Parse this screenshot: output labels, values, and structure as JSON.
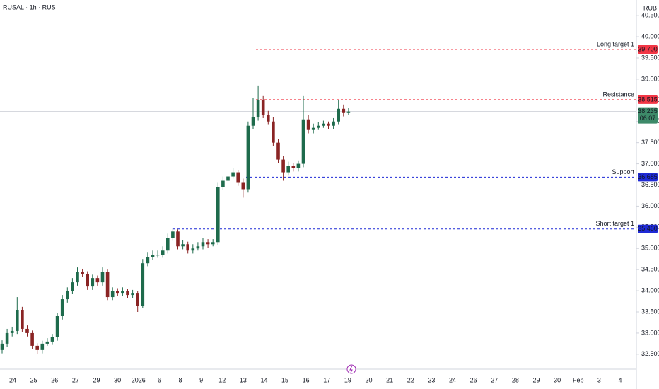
{
  "chart_data": {
    "type": "candlestick",
    "title": "RUSAL · 1h · RUS",
    "currency": "RUB",
    "up_color": "#1e6b4c",
    "down_color": "#8a2424",
    "ylim": [
      32.18,
      40.87
    ],
    "yticks": [
      {
        "value": 32.5,
        "label": "32.500"
      },
      {
        "value": 33,
        "label": "33.000"
      },
      {
        "value": 33.5,
        "label": "33.500"
      },
      {
        "value": 34,
        "label": "34.000"
      },
      {
        "value": 34.5,
        "label": "34.500"
      },
      {
        "value": 35,
        "label": "35.000"
      },
      {
        "value": 35.5,
        "label": "35.500"
      },
      {
        "value": 36,
        "label": "36.000"
      },
      {
        "value": 36.5,
        "label": "36.500"
      },
      {
        "value": 37,
        "label": "37.000"
      },
      {
        "value": 37.5,
        "label": "37.500"
      },
      {
        "value": 38,
        "label": "38.000"
      },
      {
        "value": 38.5,
        "label": "38.500"
      },
      {
        "value": 39,
        "label": "39.000"
      },
      {
        "value": 39.5,
        "label": "39.500"
      },
      {
        "value": 40,
        "label": "40.000"
      },
      {
        "value": 40.5,
        "label": "40.500"
      }
    ],
    "x_labels": [
      "24",
      "25",
      "26",
      "27",
      "29",
      "30",
      "2026",
      "6",
      "8",
      "9",
      "12",
      "13",
      "14",
      "15",
      "16",
      "17",
      "19",
      "20",
      "21",
      "22",
      "23",
      "24",
      "26",
      "27",
      "28",
      "29",
      "30",
      "Feb",
      "3",
      "4"
    ],
    "open": [
      32.6,
      32.75,
      33.0,
      33.05,
      33.55,
      33.1,
      33.0,
      32.7,
      32.6,
      32.75,
      32.8,
      32.9,
      33.4,
      33.8,
      34.0,
      34.2,
      34.45,
      34.4,
      34.1,
      34.3,
      34.2,
      34.45,
      33.85,
      34.0,
      33.95,
      34.0,
      33.9,
      33.95,
      33.65,
      34.65,
      34.8,
      34.85,
      34.85,
      34.95,
      35.25,
      35.4,
      35.05,
      35.1,
      34.95,
      35.0,
      35.05,
      35.15,
      35.1,
      35.15,
      36.45,
      36.6,
      36.7,
      36.8,
      36.55,
      36.4,
      37.9,
      38.1,
      38.5,
      38.15,
      38.0,
      37.5,
      37.1,
      36.8,
      36.95,
      36.9,
      37.0,
      38.05,
      37.8,
      37.85,
      37.9,
      37.95,
      37.9,
      38.0,
      38.3,
      38.2
    ],
    "high": [
      32.83,
      33.1,
      33.15,
      33.85,
      33.62,
      33.18,
      33.06,
      32.76,
      32.82,
      32.88,
      32.98,
      33.48,
      33.9,
      34.08,
      34.3,
      34.55,
      34.52,
      34.46,
      34.38,
      34.36,
      34.55,
      34.5,
      34.08,
      34.06,
      34.08,
      34.05,
      34.02,
      34.0,
      34.75,
      34.9,
      34.95,
      34.95,
      35.05,
      35.35,
      35.48,
      35.45,
      35.2,
      35.16,
      35.1,
      35.15,
      35.25,
      35.22,
      35.22,
      36.55,
      36.7,
      36.8,
      36.9,
      36.85,
      36.65,
      38.0,
      38.55,
      38.85,
      38.6,
      38.25,
      38.1,
      37.58,
      37.18,
      37.05,
      37.02,
      37.08,
      38.6,
      38.15,
      37.95,
      37.98,
      38.02,
      38.0,
      38.08,
      38.5,
      38.4,
      38.32
    ],
    "low": [
      32.52,
      32.68,
      32.92,
      32.98,
      33.02,
      32.92,
      32.62,
      32.5,
      32.52,
      32.7,
      32.72,
      32.82,
      33.32,
      33.72,
      33.92,
      34.12,
      34.32,
      34.02,
      34.02,
      34.12,
      34.12,
      33.78,
      33.78,
      33.88,
      33.88,
      33.82,
      33.82,
      33.5,
      33.6,
      34.58,
      34.72,
      34.78,
      34.78,
      34.88,
      35.18,
      34.98,
      34.98,
      34.88,
      34.88,
      34.95,
      34.98,
      35.02,
      35.05,
      35.08,
      36.38,
      36.55,
      36.65,
      36.48,
      36.2,
      36.32,
      37.82,
      38.02,
      38.08,
      37.92,
      37.42,
      37.02,
      36.6,
      36.72,
      36.82,
      36.82,
      36.92,
      37.72,
      37.72,
      37.8,
      37.85,
      37.82,
      37.82,
      37.92,
      38.12,
      38.15
    ],
    "close": [
      32.75,
      33.0,
      33.05,
      33.55,
      33.1,
      33.0,
      32.7,
      32.6,
      32.75,
      32.8,
      32.9,
      33.4,
      33.8,
      34.0,
      34.2,
      34.45,
      34.4,
      34.1,
      34.3,
      34.2,
      34.45,
      33.85,
      34.0,
      33.95,
      34.0,
      33.9,
      33.95,
      33.65,
      34.65,
      34.8,
      34.85,
      34.85,
      34.95,
      35.25,
      35.4,
      35.05,
      35.1,
      34.95,
      35.0,
      35.05,
      35.15,
      35.1,
      35.15,
      36.45,
      36.6,
      36.7,
      36.8,
      36.55,
      36.4,
      37.9,
      38.1,
      38.5,
      38.15,
      38.0,
      37.5,
      37.1,
      36.8,
      36.95,
      36.9,
      37.0,
      38.05,
      37.8,
      37.85,
      37.9,
      37.95,
      37.9,
      38.0,
      38.3,
      38.2,
      38.235
    ],
    "levels": [
      {
        "name": "Long target 1",
        "value": 39.7,
        "value_label": "39.700",
        "color": "#f23645"
      },
      {
        "name": "Resistance",
        "value": 38.515,
        "value_label": "38.515",
        "color": "#f23645"
      },
      {
        "name": "Support",
        "value": 36.685,
        "value_label": "36.685",
        "color": "#1f2ad6"
      },
      {
        "name": "Short target 1",
        "value": 35.46,
        "value_label": "35.460",
        "color": "#1f2ad6"
      }
    ],
    "last_price": {
      "value": 38.235,
      "countdown": "06:07",
      "color": "#3d8a69"
    }
  }
}
